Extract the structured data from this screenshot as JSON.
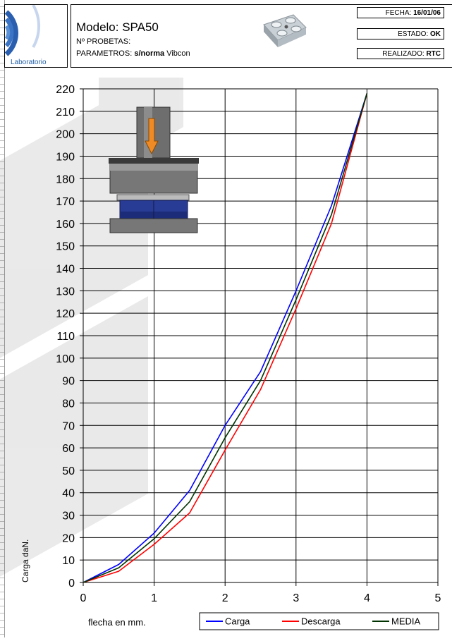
{
  "header": {
    "logo_text": "Laboratorio",
    "model": "Modelo: SPA50",
    "probetas": "Nº PROBETAS:",
    "parametros_label": "PARAMETROS:",
    "parametros_bold": "s/norma",
    "parametros_rest": "Vibcon",
    "fecha_label": "FECHA:",
    "fecha_value": "16/01/06",
    "estado_label": "ESTADO:",
    "estado_value": "OK",
    "realizado_label": "REALIZADO:",
    "realizado_value": "RTC"
  },
  "chart_data": {
    "type": "line",
    "xlabel": "flecha en mm.",
    "ylabel": "Carga daN.",
    "xlim": [
      0,
      5
    ],
    "ylim": [
      0,
      220
    ],
    "xticks": [
      0,
      1,
      2,
      3,
      4,
      5
    ],
    "yticks": [
      0,
      10,
      20,
      30,
      40,
      50,
      60,
      70,
      80,
      90,
      100,
      110,
      120,
      130,
      140,
      150,
      160,
      170,
      180,
      190,
      200,
      210,
      220
    ],
    "grid": true,
    "legend_position": "bottom",
    "series": [
      {
        "name": "Carga",
        "color": "#0000ff",
        "x": [
          0,
          0.5,
          1,
          1.5,
          2,
          2.5,
          3,
          3.5,
          4
        ],
        "y": [
          0,
          8,
          22,
          41,
          70,
          94,
          130,
          168,
          218
        ]
      },
      {
        "name": "Descarga",
        "color": "#ff0000",
        "x": [
          0,
          0.5,
          1,
          1.5,
          2,
          2.5,
          3,
          3.5,
          4
        ],
        "y": [
          0,
          5,
          17,
          31,
          59,
          86,
          122,
          160,
          218
        ]
      },
      {
        "name": "MEDIA",
        "color": "#003300",
        "x": [
          0,
          0.5,
          1,
          1.5,
          2,
          2.5,
          3,
          3.5,
          4
        ],
        "y": [
          0,
          6.5,
          19.5,
          36,
          64.5,
          90,
          126,
          164,
          218
        ]
      }
    ]
  }
}
